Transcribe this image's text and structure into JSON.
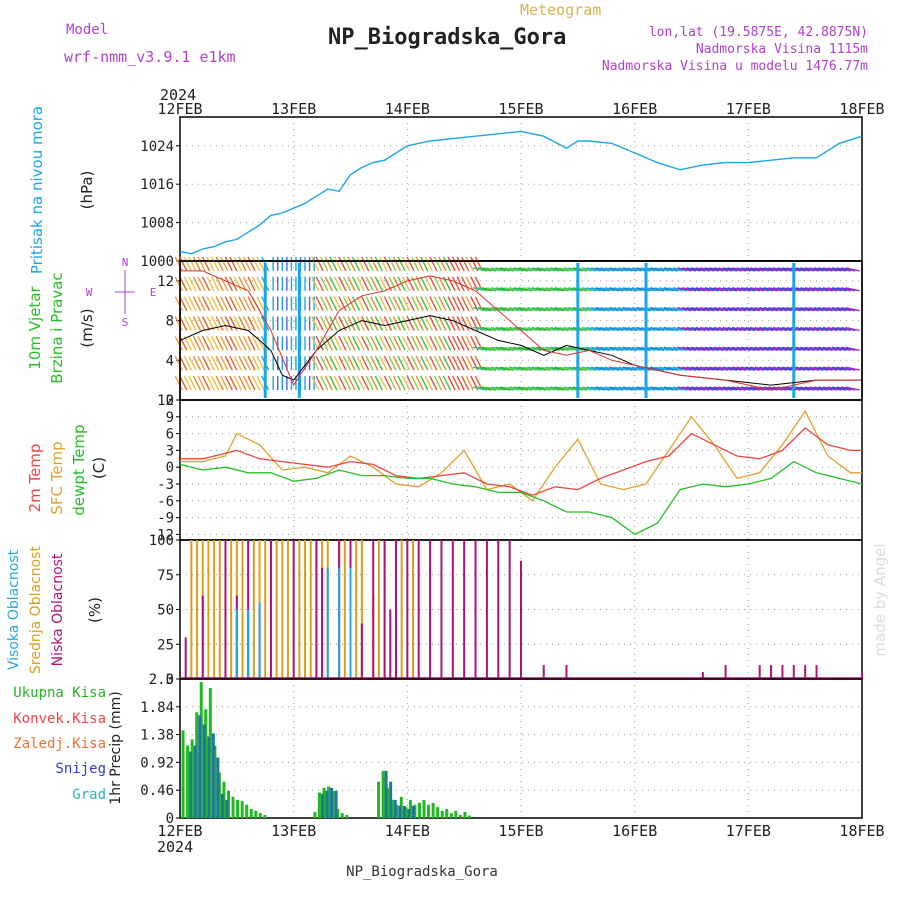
{
  "header": {
    "model_label": "Model",
    "model_name": "wrf-nmm_v3.9.1 e1km",
    "meteogram_label": "Meteogram",
    "station_title": "NP_Biogradska_Gora",
    "lonlat": "lon,lat (19.5875E, 42.8875N)",
    "elevation": "Nadmorska Visina 1115m",
    "model_elevation": "Nadmorska Visina u modelu 1476.77m",
    "year_top": "2024",
    "year_bottom": "2024",
    "footer_station": "NP_Biogradska_Gora",
    "watermark": "made by Angel"
  },
  "colors": {
    "pressure": "#1ba6e6",
    "wind_label": "#22c022",
    "temp2m": "#ef4444",
    "sfc": "#e0a030",
    "dewpt": "#22c022",
    "high_cloud": "#22a8e0",
    "mid_cloud": "#d9a020",
    "low_cloud": "#b0107a",
    "total_precip": "#22b822",
    "conv_precip": "#ef4444",
    "frz_precip": "#f07030",
    "snow": "#3040c8",
    "graupel": "#20b8b8",
    "title_purple": "#b040d0",
    "meteogram_orange": "#e0b050"
  },
  "chart_data": [
    {
      "type": "line",
      "title": "",
      "ylabel_parts": [
        "Pritisak na nivou mora",
        "(hPa)"
      ],
      "x_ticks": [
        "12FEB",
        "13FEB",
        "14FEB",
        "15FEB",
        "16FEB",
        "17FEB",
        "18FEB"
      ],
      "ylim": [
        1000,
        1030
      ],
      "y_ticks": [
        "1000",
        "1008",
        "1016",
        "1024"
      ],
      "series": [
        {
          "x": [
            0,
            0.1,
            0.2,
            0.3,
            0.4,
            0.5,
            0.6,
            0.7,
            0.8,
            0.9,
            1.0,
            1.1,
            1.2,
            1.3,
            1.4,
            1.5,
            1.6,
            1.7,
            1.8,
            1.9,
            2.0,
            2.2,
            2.4,
            2.6,
            2.8,
            3.0,
            3.2,
            3.4,
            3.5,
            3.6,
            3.8,
            4.0,
            4.2,
            4.4,
            4.6,
            4.8,
            5.0,
            5.2,
            5.4,
            5.6,
            5.8,
            6.0
          ],
          "values": [
            1002,
            1001.5,
            1002.5,
            1003,
            1004,
            1004.5,
            1006,
            1007.5,
            1009.5,
            1010,
            1011,
            1012,
            1013.5,
            1015,
            1014.5,
            1018,
            1019.5,
            1020.5,
            1021,
            1022.5,
            1024,
            1025,
            1025.5,
            1026,
            1026.5,
            1027,
            1026,
            1023.5,
            1025,
            1025,
            1024.5,
            1022.5,
            1020.5,
            1019,
            1020,
            1020.5,
            1020.5,
            1021,
            1021.5,
            1021.5,
            1024.5,
            1026
          ]
        }
      ]
    },
    {
      "type": "line",
      "title": "",
      "ylabel_parts": [
        "10m Vjetar",
        "Brzina i Pravac",
        "(m/s)"
      ],
      "compass_labels": [
        "N",
        "W",
        "E",
        "S"
      ],
      "x_ticks": [
        "12FEB",
        "13FEB",
        "14FEB",
        "15FEB",
        "16FEB",
        "17FEB",
        "18FEB"
      ],
      "ylim": [
        0,
        14
      ],
      "y_ticks": [
        "0",
        "4",
        "8",
        "12"
      ],
      "series": [
        {
          "name": "",
          "x": [
            0,
            0.2,
            0.4,
            0.6,
            0.7,
            0.8,
            0.9,
            1.0,
            1.2,
            1.4,
            1.6,
            1.8,
            2.0,
            2.2,
            2.4,
            2.6,
            2.8,
            3.0,
            3.2,
            3.4,
            3.6,
            3.8,
            4.0,
            4.4,
            4.8,
            5.2,
            5.6,
            6.0
          ],
          "values": [
            6,
            7,
            7.5,
            7,
            6,
            5,
            2.5,
            2,
            5,
            7,
            8,
            7.5,
            8,
            8.5,
            8,
            7,
            6,
            5.5,
            4.5,
            5.5,
            5,
            4.5,
            3.5,
            2.5,
            2,
            1.5,
            2,
            2
          ]
        },
        {
          "name": "",
          "x": [
            0,
            0.2,
            0.4,
            0.6,
            0.8,
            1.0,
            1.2,
            1.4,
            1.6,
            1.8,
            2.0,
            2.2,
            2.4,
            2.6,
            2.8,
            3.0,
            3.2,
            3.4,
            3.6,
            3.8,
            4.0,
            4.4,
            4.8,
            5.2,
            5.6,
            6.0
          ],
          "values": [
            13,
            13,
            12,
            11,
            7,
            1.5,
            5,
            9,
            10.5,
            11,
            12,
            12.5,
            12,
            11,
            9,
            7,
            5,
            4.5,
            5,
            4,
            3.5,
            2.5,
            2,
            1,
            2,
            2
          ]
        }
      ]
    },
    {
      "type": "line",
      "title": "",
      "ylabel_parts": [
        "2m Temp",
        "SFC Temp",
        "dewpt Temp",
        "(C)"
      ],
      "x_ticks": [
        "12FEB",
        "13FEB",
        "14FEB",
        "15FEB",
        "16FEB",
        "17FEB",
        "18FEB"
      ],
      "ylim": [
        -13,
        12
      ],
      "y_ticks": [
        "-12",
        "-9",
        "-6",
        "-3",
        "0",
        "3",
        "6",
        "9",
        "12"
      ],
      "series": [
        {
          "name": "2m Temp",
          "x": [
            0,
            0.2,
            0.4,
            0.5,
            0.7,
            0.9,
            1.1,
            1.3,
            1.5,
            1.7,
            1.9,
            2.1,
            2.3,
            2.5,
            2.7,
            2.9,
            3.1,
            3.3,
            3.5,
            3.7,
            3.9,
            4.1,
            4.3,
            4.5,
            4.7,
            4.9,
            5.1,
            5.3,
            5.5,
            5.7,
            5.9,
            6.0
          ],
          "values": [
            1.5,
            1.5,
            2.5,
            3,
            1.5,
            1,
            0.5,
            0,
            1,
            0.5,
            -1.5,
            -2,
            -1.5,
            -1,
            -3,
            -3.5,
            -5,
            -3.5,
            -4,
            -2,
            -0.5,
            1,
            2,
            6,
            4,
            2,
            1.5,
            3,
            7,
            4,
            3,
            3
          ]
        },
        {
          "name": "SFC Temp",
          "x": [
            0,
            0.2,
            0.4,
            0.5,
            0.6,
            0.7,
            0.9,
            1.1,
            1.3,
            1.5,
            1.7,
            1.9,
            2.1,
            2.3,
            2.5,
            2.7,
            2.9,
            3.1,
            3.3,
            3.5,
            3.7,
            3.9,
            4.1,
            4.3,
            4.5,
            4.7,
            4.9,
            5.1,
            5.3,
            5.5,
            5.7,
            5.9,
            6.0
          ],
          "values": [
            1,
            1,
            2,
            6,
            5,
            4,
            -0.5,
            0,
            -1,
            2,
            0,
            -3,
            -3.5,
            -1,
            3,
            -4,
            -3,
            -6,
            0,
            5,
            -3,
            -4,
            -3,
            3,
            9,
            4,
            -2,
            -1,
            4,
            10,
            2,
            -1,
            -1
          ]
        },
        {
          "name": "dewpt Temp",
          "x": [
            0,
            0.2,
            0.4,
            0.6,
            0.8,
            1.0,
            1.2,
            1.4,
            1.6,
            1.8,
            2.0,
            2.2,
            2.4,
            2.6,
            2.8,
            3.0,
            3.2,
            3.4,
            3.6,
            3.8,
            4.0,
            4.2,
            4.4,
            4.6,
            4.8,
            5.0,
            5.2,
            5.4,
            5.6,
            5.8,
            6.0
          ],
          "values": [
            0.5,
            -0.5,
            0,
            -1,
            -1,
            -2.5,
            -2,
            -0.5,
            -1.5,
            -1.5,
            -2,
            -2,
            -3,
            -3.5,
            -4.5,
            -4.5,
            -6,
            -8,
            -8,
            -9,
            -12,
            -10,
            -4,
            -3,
            -3.5,
            -3,
            -2,
            1,
            -1,
            -2,
            -3
          ]
        }
      ]
    },
    {
      "type": "bar",
      "title": "",
      "ylabel_parts": [
        "Visoka Oblacnost",
        "Srednja Oblacnost",
        "Niska Oblacnost",
        "(%)"
      ],
      "x_ticks": [
        "12FEB",
        "13FEB",
        "14FEB",
        "15FEB",
        "16FEB",
        "17FEB",
        "18FEB"
      ],
      "ylim": [
        0,
        100
      ],
      "y_ticks": [
        "0",
        "25",
        "50",
        "75",
        "100"
      ],
      "series": [
        {
          "name": "mid",
          "x": [
            0.1,
            0.15,
            0.2,
            0.25,
            0.3,
            0.35,
            0.4,
            0.45,
            0.5,
            0.55,
            0.6,
            0.65,
            0.7,
            0.75,
            0.8,
            0.85,
            0.9,
            0.95,
            1.05,
            1.1,
            1.15,
            1.2,
            1.25,
            1.3,
            1.4,
            1.45,
            1.5,
            1.55,
            1.6,
            1.7,
            1.75,
            1.8,
            1.9,
            1.95,
            2.05
          ],
          "values": [
            100,
            100,
            100,
            100,
            100,
            100,
            100,
            100,
            100,
            100,
            100,
            100,
            100,
            100,
            100,
            100,
            100,
            100,
            100,
            100,
            100,
            100,
            100,
            100,
            100,
            100,
            100,
            100,
            100,
            60,
            100,
            100,
            100,
            100,
            100
          ]
        },
        {
          "name": "low",
          "x": [
            0.05,
            0.2,
            0.4,
            0.5,
            0.6,
            0.7,
            0.8,
            1.0,
            1.2,
            1.25,
            1.4,
            1.5,
            1.6,
            1.7,
            1.8,
            1.85,
            1.9,
            2.0,
            2.1,
            2.2,
            2.3,
            2.4,
            2.5,
            2.6,
            2.7,
            2.8,
            2.9,
            3.0,
            3.2,
            3.4,
            4.6,
            4.8,
            5.1,
            5.2,
            5.3,
            5.4,
            5.5,
            5.6,
            6.0
          ],
          "values": [
            30,
            60,
            100,
            60,
            100,
            50,
            100,
            100,
            100,
            80,
            100,
            100,
            40,
            100,
            100,
            50,
            100,
            100,
            100,
            100,
            100,
            100,
            100,
            100,
            100,
            100,
            100,
            85,
            10,
            10,
            5,
            10,
            10,
            10,
            10,
            10,
            10,
            10,
            5
          ]
        },
        {
          "name": "high",
          "x": [
            0.5,
            0.6,
            0.7,
            1.3,
            1.4,
            1.5
          ],
          "values": [
            50,
            50,
            55,
            80,
            80,
            80
          ]
        }
      ]
    },
    {
      "type": "bar",
      "title": "",
      "ylabel_parts": [
        "Ukupna Kisa",
        "Konvek.Kisa",
        "Zaledj.Kisa",
        "Snijeg",
        "Grad",
        "1hr Precip (mm)"
      ],
      "x_ticks": [
        "12FEB",
        "13FEB",
        "14FEB",
        "15FEB",
        "16FEB",
        "17FEB",
        "18FEB"
      ],
      "ylim": [
        0,
        2.3
      ],
      "y_ticks": [
        "0",
        "0.46",
        "0.92",
        "1.38",
        "1.84",
        "2.3"
      ],
      "series": [
        {
          "name": "Ukupna Kisa",
          "x": [
            0.04,
            0.08,
            0.12,
            0.16,
            0.2,
            0.24,
            0.28,
            0.32,
            0.36,
            0.4,
            0.44,
            0.48,
            0.52,
            0.56,
            0.6,
            0.64,
            0.68,
            0.72,
            0.76,
            1.2,
            1.24,
            1.28,
            1.32,
            1.36,
            1.4,
            1.44,
            1.48,
            1.76,
            1.8,
            1.84,
            1.88,
            1.92,
            1.96,
            2.0,
            2.04,
            2.08,
            2.12,
            2.16,
            2.2,
            2.24,
            2.28,
            2.32,
            2.36,
            2.4,
            2.44,
            2.48,
            2.52,
            2.56
          ],
          "values": [
            1.45,
            1.2,
            1.3,
            1.75,
            2.25,
            1.8,
            2.15,
            1.2,
            0.75,
            0.6,
            0.45,
            0.35,
            0.3,
            0.28,
            0.22,
            0.15,
            0.12,
            0.08,
            0.05,
            0.1,
            0.42,
            0.5,
            0.52,
            0.45,
            0.15,
            0.08,
            0.05,
            0.6,
            0.78,
            0.5,
            0.3,
            0.22,
            0.35,
            0.18,
            0.3,
            0.22,
            0.25,
            0.3,
            0.22,
            0.25,
            0.18,
            0.12,
            0.15,
            0.08,
            0.12,
            0.05,
            0.1,
            0.04
          ]
        },
        {
          "name": "Snijeg",
          "x": [
            0.08,
            0.12,
            0.16,
            0.2,
            0.24,
            0.28,
            0.32,
            0.36,
            0.4,
            1.24,
            1.28,
            1.32,
            1.36,
            1.8,
            1.84,
            1.88,
            1.92,
            1.96,
            2.0,
            2.04
          ],
          "values": [
            1.1,
            1.2,
            1.7,
            1.55,
            1.35,
            1.4,
            1.0,
            0.4,
            0.3,
            0.4,
            0.45,
            0.5,
            0.45,
            0.78,
            0.6,
            0.3,
            0.2,
            0.2,
            0.15,
            0.2
          ]
        }
      ]
    }
  ]
}
